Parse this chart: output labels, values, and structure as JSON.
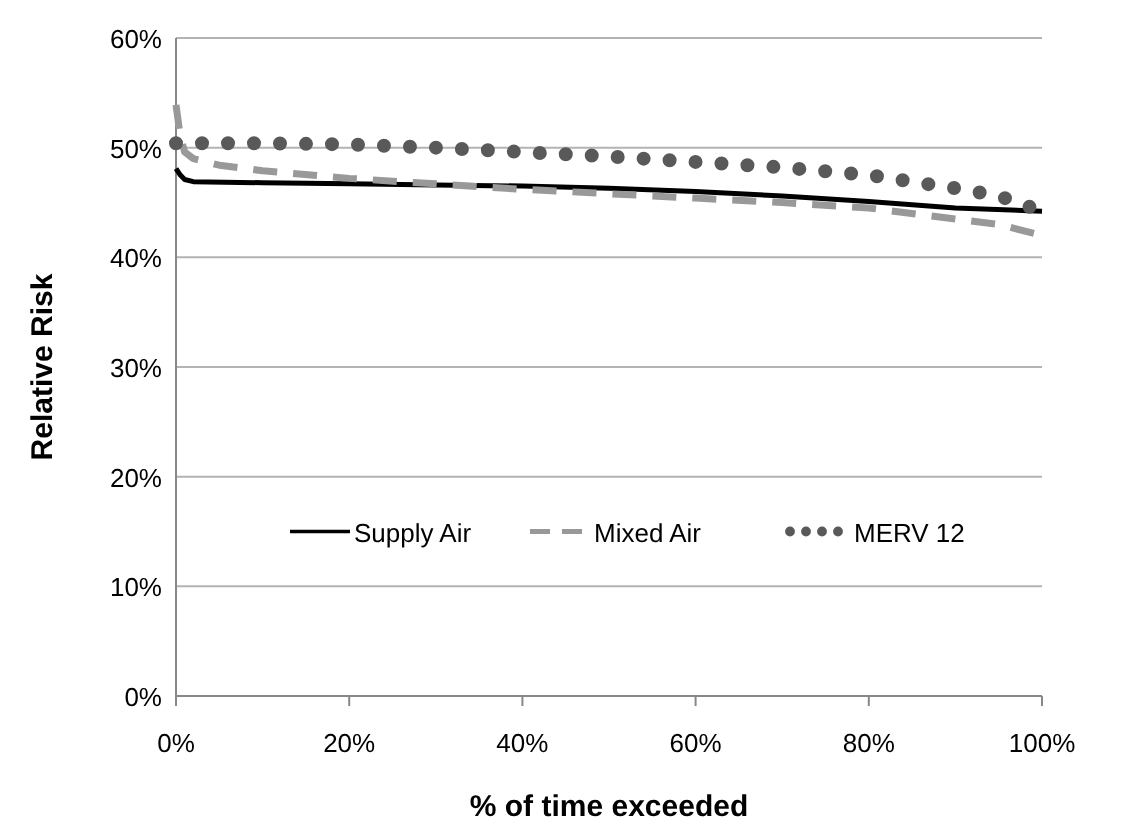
{
  "chart_data": {
    "type": "line",
    "xlabel": "% of time exceeded",
    "ylabel": "Relative Risk",
    "xlim": [
      0,
      100
    ],
    "xticks": [
      {
        "value": 0,
        "label": "0%"
      },
      {
        "value": 20,
        "label": "20%"
      },
      {
        "value": 40,
        "label": "40%"
      },
      {
        "value": 60,
        "label": "60%"
      },
      {
        "value": 80,
        "label": "80%"
      },
      {
        "value": 100,
        "label": "100%"
      }
    ],
    "ylim": [
      0,
      60
    ],
    "yticks": [
      {
        "value": 0,
        "label": "0%"
      },
      {
        "value": 10,
        "label": "10%"
      },
      {
        "value": 20,
        "label": "20%"
      },
      {
        "value": 30,
        "label": "30%"
      },
      {
        "value": 40,
        "label": "40%"
      },
      {
        "value": 50,
        "label": "50%"
      },
      {
        "value": 60,
        "label": "60%"
      }
    ],
    "grid": "y",
    "legend": "bottom",
    "series": [
      {
        "name": "Supply Air",
        "color": "#000000",
        "line_style": "solid",
        "x": [
          0,
          0.5,
          1,
          2,
          10,
          20,
          30,
          40,
          50,
          60,
          70,
          80,
          90,
          100
        ],
        "values": [
          48.1,
          47.5,
          47.1,
          46.9,
          46.8,
          46.7,
          46.6,
          46.5,
          46.3,
          46.0,
          45.6,
          45.1,
          44.5,
          44.2
        ]
      },
      {
        "name": "Mixed Air",
        "color": "#999999",
        "line_style": "dashed",
        "x": [
          0,
          0.5,
          1,
          2,
          5,
          10,
          20,
          30,
          40,
          50,
          60,
          70,
          80,
          90,
          95,
          100
        ],
        "values": [
          53.9,
          51.0,
          49.6,
          49.0,
          48.4,
          47.9,
          47.2,
          46.7,
          46.2,
          45.8,
          45.4,
          45.0,
          44.5,
          43.5,
          43.0,
          42.0
        ]
      },
      {
        "name": "MERV 12",
        "color": "#595959",
        "line_style": "dotted",
        "x": [
          0,
          10,
          20,
          30,
          40,
          50,
          60,
          70,
          80,
          90,
          95,
          100
        ],
        "values": [
          50.4,
          50.4,
          50.3,
          50.0,
          49.6,
          49.2,
          48.7,
          48.2,
          47.5,
          46.3,
          45.6,
          44.2
        ]
      }
    ]
  }
}
